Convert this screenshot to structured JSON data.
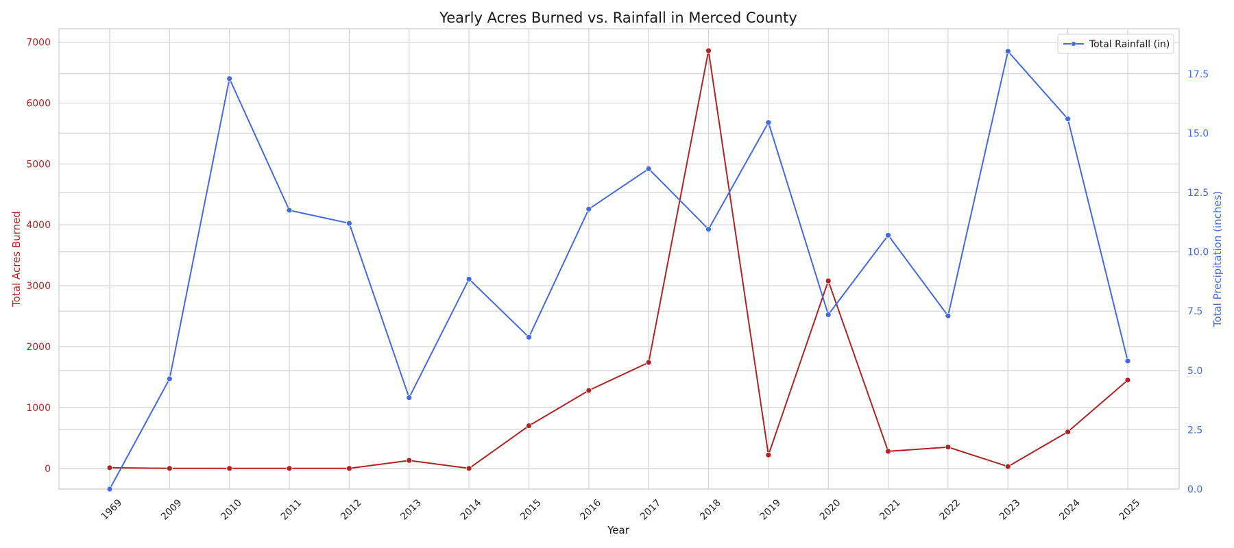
{
  "chart_data": {
    "type": "line",
    "title": "Yearly Acres Burned vs. Rainfall in Merced County",
    "xlabel": "Year",
    "categories": [
      "1969",
      "2009",
      "2010",
      "2011",
      "2012",
      "2013",
      "2014",
      "2015",
      "2016",
      "2017",
      "2018",
      "2019",
      "2020",
      "2021",
      "2022",
      "2023",
      "2024",
      "2025"
    ],
    "y_left": {
      "label": "Total Acres Burned",
      "range": [
        -340,
        7220
      ],
      "ticks": [
        0,
        1000,
        2000,
        3000,
        4000,
        5000,
        6000,
        7000
      ],
      "tick_labels": [
        "0",
        "1000",
        "2000",
        "3000",
        "4000",
        "5000",
        "6000",
        "7000"
      ],
      "color": "#b22222"
    },
    "y_right": {
      "label": "Total Precipitation (inches)",
      "range": [
        0,
        19.4
      ],
      "ticks": [
        0,
        2.5,
        5,
        7.5,
        10,
        12.5,
        15,
        17.5
      ],
      "tick_labels": [
        "0.0",
        "2.5",
        "5.0",
        "7.5",
        "10.0",
        "12.5",
        "15.0",
        "17.5"
      ],
      "color": "#4169e1"
    },
    "series": [
      {
        "name": "",
        "axis": "left",
        "color": "#b22222",
        "values": [
          10,
          0,
          0,
          0,
          0,
          130,
          0,
          700,
          1280,
          1740,
          6860,
          220,
          3080,
          280,
          350,
          30,
          600,
          1450
        ]
      },
      {
        "name": "Total Rainfall (in)",
        "axis": "right",
        "color": "#4169e1",
        "values": [
          0.0,
          4.65,
          17.3,
          11.75,
          11.2,
          3.85,
          8.85,
          6.4,
          11.8,
          13.5,
          10.95,
          15.45,
          7.35,
          10.7,
          7.3,
          18.45,
          15.6,
          5.4
        ]
      }
    ],
    "grid": true,
    "legend": {
      "position": "top-right",
      "entries": [
        "Total Rainfall (in)"
      ]
    }
  }
}
